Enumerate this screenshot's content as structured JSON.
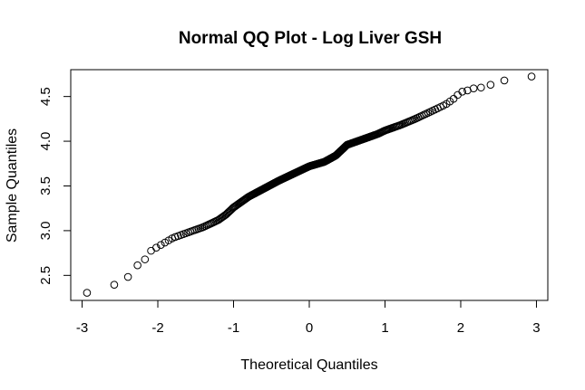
{
  "chart_data": {
    "type": "scatter",
    "title": "Normal QQ Plot - Log Liver GSH",
    "xlabel": "Theoretical Quantiles",
    "ylabel": "Sample Quantiles",
    "xlim": [
      -3.15,
      3.15
    ],
    "ylim": [
      2.22,
      4.8
    ],
    "xticks": [
      -3,
      -2,
      -1,
      0,
      1,
      2,
      3
    ],
    "xtick_labels": [
      "-3",
      "-2",
      "-1",
      "0",
      "1",
      "2",
      "3"
    ],
    "yticks": [
      2.5,
      3.0,
      3.5,
      4.0,
      4.5
    ],
    "ytick_labels": [
      "2.5",
      "3.0",
      "3.5",
      "4.0",
      "4.5"
    ],
    "grid": false,
    "marker": "open-circle",
    "point_count": 300,
    "sample_curve": {
      "x": [
        -3.0,
        -2.62,
        -2.42,
        -2.3,
        -2.2,
        -2.1,
        -2.0,
        -1.8,
        -1.6,
        -1.4,
        -1.2,
        -1.1,
        -1.0,
        -0.8,
        -0.6,
        -0.4,
        -0.2,
        0.0,
        0.2,
        0.35,
        0.5,
        0.7,
        0.9,
        1.0,
        1.2,
        1.4,
        1.6,
        1.8,
        1.9,
        2.0,
        2.1,
        2.2,
        2.3,
        2.45,
        2.62,
        3.0
      ],
      "y": [
        2.29,
        2.38,
        2.45,
        2.6,
        2.64,
        2.77,
        2.82,
        2.92,
        2.98,
        3.04,
        3.12,
        3.18,
        3.26,
        3.38,
        3.47,
        3.56,
        3.64,
        3.72,
        3.77,
        3.84,
        3.96,
        4.02,
        4.08,
        4.12,
        4.18,
        4.25,
        4.33,
        4.41,
        4.47,
        4.55,
        4.57,
        4.6,
        4.6,
        4.65,
        4.69,
        4.73
      ]
    }
  }
}
